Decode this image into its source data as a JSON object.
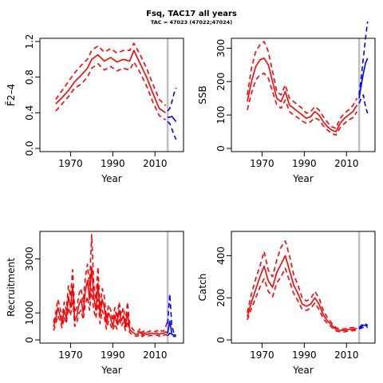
{
  "title": "Fsq, TAC17 all years",
  "subtitle": "TAC = 47023 (47022;47024)",
  "colors": {
    "history": "#ff0000",
    "projection": "#0000ff",
    "marker": "#bfbfbf",
    "axis": "#000000"
  },
  "chart_data": [
    {
      "type": "line",
      "id": "fbar",
      "xlabel": "Year",
      "ylabel": "F̄2–4",
      "xlim": [
        1957,
        2022
      ],
      "ylim": [
        0,
        1.2
      ],
      "xticks": [
        1970,
        1990,
        2010
      ],
      "yticks": [
        "0.0",
        "0.4",
        "0.8",
        "1.2"
      ],
      "marker_year": 2016,
      "history": {
        "x": [
          1963,
          1966,
          1969,
          1972,
          1975,
          1978,
          1980,
          1983,
          1986,
          1989,
          1992,
          1995,
          1998,
          2000,
          2003,
          2006,
          2009,
          2012,
          2015
        ],
        "median": [
          0.5,
          0.57,
          0.65,
          0.75,
          0.82,
          0.9,
          1.0,
          1.05,
          0.98,
          1.02,
          0.97,
          1.0,
          0.98,
          1.1,
          0.95,
          0.8,
          0.62,
          0.45,
          0.4
        ],
        "upper": [
          0.55,
          0.65,
          0.75,
          0.85,
          0.93,
          1.0,
          1.1,
          1.15,
          1.08,
          1.12,
          1.07,
          1.1,
          1.1,
          1.18,
          1.05,
          0.9,
          0.72,
          0.55,
          0.48
        ],
        "lower": [
          0.42,
          0.5,
          0.58,
          0.68,
          0.72,
          0.8,
          0.9,
          0.95,
          0.88,
          0.92,
          0.87,
          0.9,
          0.88,
          0.97,
          0.85,
          0.7,
          0.52,
          0.37,
          0.32
        ]
      },
      "projection": {
        "x": [
          2016,
          2017,
          2018,
          2019,
          2020
        ],
        "median": [
          0.35,
          0.35,
          0.36,
          0.33,
          0.3
        ],
        "upper": [
          0.42,
          0.45,
          0.52,
          0.62,
          0.68
        ],
        "lower": [
          0.3,
          0.28,
          0.22,
          0.15,
          0.1
        ]
      }
    },
    {
      "type": "line",
      "id": "ssb",
      "xlabel": "Year",
      "ylabel": "SSB",
      "xlim": [
        1957,
        2022
      ],
      "ylim": [
        0,
        320
      ],
      "xticks": [
        1970,
        1990,
        2010
      ],
      "yticks": [
        "0",
        "100",
        "200",
        "300"
      ],
      "marker_year": 2016,
      "history": {
        "x": [
          1963,
          1965,
          1967,
          1969,
          1971,
          1973,
          1975,
          1977,
          1979,
          1981,
          1983,
          1985,
          1987,
          1989,
          1991,
          1993,
          1995,
          1997,
          1999,
          2001,
          2003,
          2005,
          2007,
          2009,
          2011,
          2013,
          2015
        ],
        "median": [
          140,
          200,
          245,
          265,
          270,
          250,
          200,
          150,
          140,
          170,
          130,
          120,
          110,
          100,
          90,
          95,
          110,
          100,
          80,
          65,
          55,
          50,
          75,
          90,
          100,
          110,
          130
        ],
        "upper": [
          160,
          240,
          290,
          310,
          320,
          290,
          230,
          170,
          160,
          190,
          150,
          140,
          130,
          120,
          105,
          110,
          125,
          115,
          95,
          78,
          65,
          60,
          90,
          105,
          115,
          128,
          150
        ],
        "lower": [
          115,
          165,
          205,
          220,
          225,
          210,
          170,
          130,
          120,
          145,
          110,
          100,
          92,
          82,
          75,
          80,
          92,
          85,
          68,
          55,
          45,
          40,
          62,
          75,
          85,
          92,
          110
        ]
      },
      "projection": {
        "x": [
          2016,
          2017,
          2018,
          2019,
          2020
        ],
        "median": [
          150,
          190,
          225,
          255,
          270
        ],
        "upper": [
          160,
          215,
          270,
          330,
          380
        ],
        "lower": [
          135,
          150,
          160,
          125,
          105
        ]
      }
    },
    {
      "type": "line",
      "id": "recruitment",
      "xlabel": "Year",
      "ylabel": "Recruitment",
      "xlim": [
        1957,
        2022
      ],
      "ylim": [
        0,
        3900
      ],
      "xticks": [
        1970,
        1990,
        2010
      ],
      "yticks": [
        "0",
        "1000",
        "3000"
      ],
      "marker_year": 2016,
      "history": {
        "x": [
          1962,
          1963,
          1964,
          1965,
          1966,
          1967,
          1968,
          1969,
          1970,
          1971,
          1972,
          1973,
          1974,
          1975,
          1976,
          1977,
          1978,
          1979,
          1980,
          1981,
          1982,
          1983,
          1984,
          1985,
          1986,
          1987,
          1988,
          1989,
          1990,
          1991,
          1992,
          1993,
          1994,
          1995,
          1996,
          1997,
          1998,
          1999,
          2000,
          2001,
          2002,
          2003,
          2004,
          2005,
          2006,
          2007,
          2008,
          2009,
          2010,
          2011,
          2012,
          2013,
          2014,
          2015,
          2016
        ],
        "median": [
          500,
          800,
          1200,
          900,
          600,
          1100,
          800,
          1600,
          1200,
          2000,
          700,
          900,
          1300,
          1500,
          1000,
          1800,
          2200,
          1500,
          2700,
          1600,
          1100,
          2100,
          900,
          1500,
          1200,
          600,
          1000,
          800,
          500,
          900,
          600,
          1100,
          700,
          900,
          500,
          1000,
          400,
          300,
          250,
          200,
          220,
          300,
          180,
          260,
          200,
          220,
          250,
          240,
          220,
          260,
          200,
          250,
          230,
          300,
          250
        ],
        "upper": [
          650,
          1000,
          1500,
          1200,
          800,
          1400,
          1100,
          2000,
          1600,
          2600,
          1000,
          1200,
          1700,
          1900,
          1400,
          2300,
          2800,
          2000,
          3900,
          2100,
          1500,
          2700,
          1200,
          1900,
          1600,
          800,
          1300,
          1100,
          700,
          1200,
          800,
          1400,
          900,
          1200,
          700,
          1400,
          600,
          450,
          350,
          280,
          300,
          420,
          260,
          360,
          280,
          300,
          340,
          320,
          300,
          350,
          280,
          340,
          320,
          480,
          700
        ],
        "lower": [
          350,
          600,
          900,
          700,
          450,
          850,
          600,
          1200,
          900,
          1500,
          500,
          650,
          1000,
          1100,
          750,
          1300,
          1600,
          1100,
          1900,
          1100,
          800,
          1500,
          600,
          1100,
          850,
          400,
          700,
          550,
          350,
          600,
          400,
          800,
          500,
          650,
          350,
          700,
          280,
          200,
          170,
          140,
          150,
          210,
          120,
          180,
          140,
          150,
          170,
          160,
          150,
          180,
          140,
          170,
          160,
          200,
          160
        ]
      },
      "projection": {
        "x": [
          2016,
          2017,
          2018,
          2019,
          2020
        ],
        "median": [
          250,
          700,
          200,
          180,
          180
        ],
        "upper": [
          600,
          1700,
          500,
          250,
          250
        ],
        "lower": [
          150,
          250,
          150,
          130,
          130
        ]
      }
    },
    {
      "type": "line",
      "id": "catch",
      "xlabel": "Year",
      "ylabel": "Catch",
      "xlim": [
        1957,
        2022
      ],
      "ylim": [
        0,
        500
      ],
      "xticks": [
        1970,
        1990,
        2010
      ],
      "yticks": [
        "0",
        "200",
        "400"
      ],
      "marker_year": 2016,
      "history": {
        "x": [
          1963,
          1965,
          1967,
          1969,
          1971,
          1973,
          1975,
          1977,
          1979,
          1981,
          1983,
          1985,
          1987,
          1989,
          1991,
          1993,
          1995,
          1997,
          1999,
          2001,
          2003,
          2005,
          2007,
          2009,
          2011,
          2013,
          2015
        ],
        "median": [
          110,
          180,
          240,
          300,
          350,
          280,
          250,
          320,
          360,
          400,
          330,
          260,
          220,
          170,
          160,
          170,
          200,
          170,
          120,
          90,
          70,
          50,
          45,
          45,
          50,
          50,
          55
        ],
        "upper": [
          130,
          220,
          290,
          350,
          420,
          330,
          300,
          380,
          440,
          470,
          400,
          310,
          260,
          200,
          185,
          195,
          230,
          200,
          140,
          105,
          80,
          58,
          52,
          52,
          58,
          58,
          62
        ],
        "lower": [
          95,
          150,
          200,
          250,
          290,
          230,
          205,
          270,
          300,
          340,
          280,
          220,
          185,
          145,
          140,
          150,
          175,
          145,
          100,
          78,
          60,
          42,
          38,
          38,
          43,
          43,
          48
        ]
      },
      "projection": {
        "x": [
          2016,
          2017,
          2018,
          2019,
          2020
        ],
        "median": [
          55,
          62,
          70,
          68,
          64
        ],
        "upper": [
          58,
          68,
          78,
          75,
          70
        ],
        "lower": [
          52,
          56,
          60,
          62,
          58
        ]
      }
    }
  ]
}
